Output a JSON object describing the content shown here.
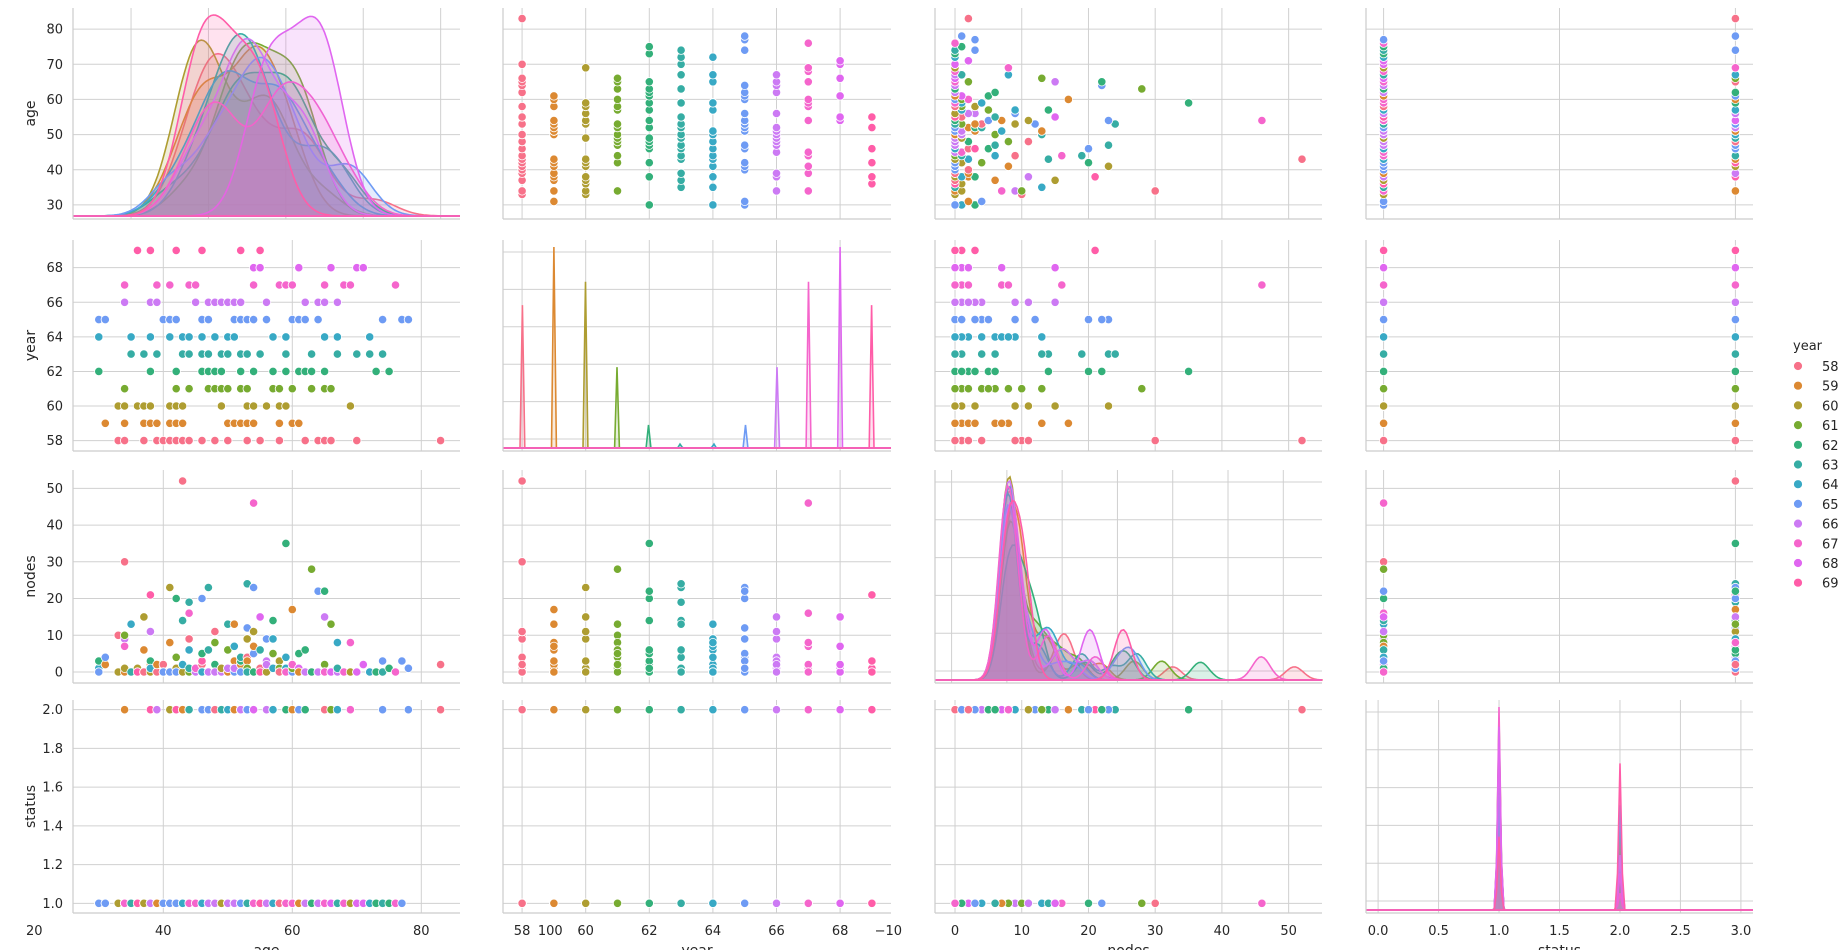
{
  "chart_data": {
    "type": "pairplot",
    "variables": [
      "age",
      "year",
      "nodes",
      "status"
    ],
    "hue": "year",
    "legend": {
      "title": "year",
      "placement": "right",
      "entries": [
        {
          "label": "58",
          "color": "#f77189"
        },
        {
          "label": "59",
          "color": "#dc8932"
        },
        {
          "label": "60",
          "color": "#ae9d31"
        },
        {
          "label": "61",
          "color": "#77ab31"
        },
        {
          "label": "62",
          "color": "#33b07a"
        },
        {
          "label": "63",
          "color": "#36ada4"
        },
        {
          "label": "64",
          "color": "#38a9c5"
        },
        {
          "label": "65",
          "color": "#6e9bf4"
        },
        {
          "label": "66",
          "color": "#cc7af4"
        },
        {
          "label": "67",
          "color": "#f565cc"
        },
        {
          "label": "68",
          "color": "#e066f0"
        },
        {
          "label": "69",
          "color": "#ff5da8"
        }
      ]
    },
    "axes": {
      "age": {
        "label": "age",
        "diag_range": [
          5,
          105
        ],
        "range": [
          26,
          86
        ],
        "ticks": [
          20,
          40,
          60,
          80,
          100
        ],
        "yticks": [
          30,
          40,
          50,
          60,
          70,
          80
        ]
      },
      "year": {
        "label": "year",
        "range": [
          57.4,
          69.6
        ],
        "ticks": [
          58,
          60,
          62,
          64,
          66,
          68
        ]
      },
      "nodes": {
        "label": "nodes",
        "diag_range": [
          -13,
          57
        ],
        "range": [
          -3,
          55
        ],
        "ticks": [
          -10,
          0,
          10,
          20,
          30,
          40,
          50
        ],
        "yticks": [
          0,
          10,
          20,
          30,
          40,
          50
        ]
      },
      "status": {
        "label": "status",
        "diag_range": [
          -0.1,
          3.1
        ],
        "range": [
          0.95,
          2.05
        ],
        "ticks": [
          0.0,
          0.5,
          1.0,
          1.5,
          2.0,
          2.5,
          3.0
        ],
        "yticks": [
          1.0,
          1.2,
          1.4,
          1.6,
          1.8,
          2.0
        ]
      }
    },
    "tick_labels": {
      "age_x": [
        "20",
        "40",
        "60",
        "80",
        "100"
      ],
      "year_x": [
        "58",
        "60",
        "62",
        "64",
        "66",
        "68"
      ],
      "nodes_x": [
        "−10",
        "0",
        "10",
        "20",
        "30",
        "40",
        "50"
      ],
      "status_x": [
        "0.0",
        "0.5",
        "1.0",
        "1.5",
        "2.0",
        "2.5",
        "3.0"
      ],
      "age_y": [
        "30",
        "40",
        "50",
        "60",
        "70",
        "80"
      ],
      "year_y": [
        "58",
        "60",
        "62",
        "64",
        "66",
        "68"
      ],
      "nodes_y": [
        "0",
        "10",
        "20",
        "30",
        "40",
        "50"
      ],
      "status_y": [
        "1.0",
        "1.2",
        "1.4",
        "1.6",
        "1.8",
        "2.0"
      ]
    },
    "grid": true,
    "records": [
      [
        30,
        64,
        1,
        1
      ],
      [
        30,
        62,
        3,
        1
      ],
      [
        30,
        65,
        0,
        1
      ],
      [
        31,
        59,
        2,
        1
      ],
      [
        31,
        65,
        4,
        1
      ],
      [
        33,
        58,
        10,
        1
      ],
      [
        33,
        60,
        0,
        1
      ],
      [
        34,
        59,
        0,
        2
      ],
      [
        34,
        66,
        9,
        1
      ],
      [
        34,
        58,
        30,
        1
      ],
      [
        34,
        60,
        1,
        1
      ],
      [
        34,
        61,
        10,
        1
      ],
      [
        34,
        67,
        7,
        1
      ],
      [
        35,
        64,
        13,
        1
      ],
      [
        35,
        63,
        0,
        1
      ],
      [
        36,
        60,
        1,
        1
      ],
      [
        36,
        69,
        0,
        1
      ],
      [
        37,
        60,
        0,
        1
      ],
      [
        37,
        63,
        0,
        1
      ],
      [
        37,
        58,
        0,
        1
      ],
      [
        37,
        59,
        6,
        1
      ],
      [
        37,
        60,
        15,
        1
      ],
      [
        38,
        69,
        21,
        2
      ],
      [
        38,
        59,
        2,
        1
      ],
      [
        38,
        60,
        0,
        1
      ],
      [
        38,
        62,
        3,
        1
      ],
      [
        38,
        64,
        1,
        1
      ],
      [
        38,
        66,
        11,
        1
      ],
      [
        39,
        66,
        0,
        2
      ],
      [
        39,
        63,
        0,
        1
      ],
      [
        39,
        67,
        0,
        1
      ],
      [
        39,
        58,
        0,
        1
      ],
      [
        39,
        59,
        2,
        1
      ],
      [
        40,
        58,
        2,
        1
      ],
      [
        40,
        58,
        0,
        1
      ],
      [
        40,
        65,
        0,
        1
      ],
      [
        41,
        60,
        23,
        2
      ],
      [
        41,
        64,
        0,
        1
      ],
      [
        41,
        67,
        0,
        1
      ],
      [
        41,
        58,
        0,
        1
      ],
      [
        41,
        59,
        8,
        1
      ],
      [
        41,
        65,
        0,
        1
      ],
      [
        42,
        69,
        1,
        2
      ],
      [
        42,
        59,
        0,
        1
      ],
      [
        42,
        58,
        0,
        1
      ],
      [
        42,
        60,
        1,
        1
      ],
      [
        42,
        61,
        4,
        1
      ],
      [
        42,
        62,
        20,
        1
      ],
      [
        42,
        65,
        0,
        1
      ],
      [
        43,
        58,
        52,
        2
      ],
      [
        43,
        59,
        2,
        2
      ],
      [
        43,
        64,
        0,
        1
      ],
      [
        43,
        60,
        0,
        1
      ],
      [
        43,
        63,
        14,
        1
      ],
      [
        43,
        64,
        2,
        1
      ],
      [
        44,
        64,
        6,
        2
      ],
      [
        44,
        58,
        9,
        2
      ],
      [
        44,
        63,
        19,
        2
      ],
      [
        44,
        61,
        0,
        1
      ],
      [
        44,
        63,
        1,
        1
      ],
      [
        44,
        67,
        16,
        1
      ],
      [
        45,
        66,
        0,
        1
      ],
      [
        45,
        67,
        1,
        1
      ],
      [
        46,
        58,
        2,
        2
      ],
      [
        46,
        69,
        3,
        2
      ],
      [
        46,
        62,
        5,
        2
      ],
      [
        46,
        65,
        20,
        2
      ],
      [
        46,
        63,
        0,
        1
      ],
      [
        46,
        64,
        0,
        1
      ],
      [
        47,
        63,
        23,
        2
      ],
      [
        47,
        62,
        0,
        2
      ],
      [
        47,
        65,
        0,
        2
      ],
      [
        47,
        61,
        0,
        1
      ],
      [
        47,
        63,
        6,
        1
      ],
      [
        47,
        66,
        0,
        1
      ],
      [
        48,
        58,
        11,
        2
      ],
      [
        48,
        58,
        11,
        2
      ],
      [
        48,
        61,
        8,
        1
      ],
      [
        48,
        62,
        2,
        1
      ],
      [
        48,
        64,
        0,
        1
      ],
      [
        48,
        66,
        0,
        1
      ],
      [
        49,
        63,
        0,
        2
      ],
      [
        49,
        61,
        1,
        1
      ],
      [
        49,
        62,
        1,
        1
      ],
      [
        49,
        66,
        0,
        1
      ],
      [
        49,
        60,
        1,
        1
      ],
      [
        50,
        63,
        13,
        2
      ],
      [
        50,
        64,
        0,
        2
      ],
      [
        50,
        59,
        0,
        1
      ],
      [
        50,
        61,
        6,
        1
      ],
      [
        50,
        63,
        1,
        1
      ],
      [
        50,
        58,
        1,
        1
      ],
      [
        50,
        66,
        1,
        1
      ],
      [
        51,
        59,
        13,
        2
      ],
      [
        51,
        59,
        3,
        2
      ],
      [
        51,
        64,
        7,
        1
      ],
      [
        51,
        59,
        1,
        1
      ],
      [
        51,
        65,
        0,
        1
      ],
      [
        51,
        66,
        1,
        1
      ],
      [
        52,
        69,
        3,
        2
      ],
      [
        52,
        59,
        2,
        2
      ],
      [
        52,
        62,
        3,
        2
      ],
      [
        52,
        66,
        4,
        2
      ],
      [
        52,
        61,
        0,
        1
      ],
      [
        52,
        63,
        4,
        1
      ],
      [
        52,
        65,
        0,
        1
      ],
      [
        53,
        58,
        4,
        1
      ],
      [
        53,
        65,
        1,
        2
      ],
      [
        53,
        59,
        3,
        2
      ],
      [
        53,
        60,
        9,
        2
      ],
      [
        53,
        63,
        24,
        2
      ],
      [
        53,
        65,
        12,
        2
      ],
      [
        53,
        61,
        1,
        1
      ],
      [
        53,
        63,
        0,
        1
      ],
      [
        54,
        60,
        11,
        2
      ],
      [
        54,
        65,
        23,
        2
      ],
      [
        54,
        65,
        5,
        2
      ],
      [
        54,
        68,
        7,
        2
      ],
      [
        54,
        59,
        7,
        1
      ],
      [
        54,
        62,
        0,
        1
      ],
      [
        54,
        67,
        46,
        1
      ],
      [
        55,
        63,
        6,
        1
      ],
      [
        55,
        68,
        15,
        1
      ],
      [
        55,
        58,
        1,
        1
      ],
      [
        55,
        69,
        0,
        1
      ],
      [
        56,
        65,
        9,
        2
      ],
      [
        56,
        66,
        3,
        2
      ],
      [
        56,
        60,
        0,
        1
      ],
      [
        56,
        66,
        2,
        1
      ],
      [
        57,
        61,
        5,
        2
      ],
      [
        57,
        62,
        14,
        2
      ],
      [
        57,
        64,
        9,
        2
      ],
      [
        57,
        64,
        1,
        1
      ],
      [
        58,
        59,
        0,
        1
      ],
      [
        58,
        60,
        3,
        1
      ],
      [
        58,
        61,
        1,
        1
      ],
      [
        58,
        67,
        0,
        1
      ],
      [
        58,
        58,
        0,
        1
      ],
      [
        59,
        62,
        35,
        2
      ],
      [
        59,
        60,
        0,
        1
      ],
      [
        59,
        63,
        0,
        1
      ],
      [
        59,
        64,
        1,
        1
      ],
      [
        59,
        64,
        4,
        1
      ],
      [
        59,
        64,
        0,
        1
      ],
      [
        59,
        67,
        0,
        1
      ],
      [
        60,
        59,
        17,
        2
      ],
      [
        60,
        65,
        0,
        1
      ],
      [
        60,
        61,
        1,
        1
      ],
      [
        60,
        67,
        2,
        1
      ],
      [
        61,
        59,
        0,
        1
      ],
      [
        61,
        62,
        5,
        2
      ],
      [
        61,
        65,
        0,
        2
      ],
      [
        61,
        68,
        1,
        1
      ],
      [
        61,
        59,
        0,
        1
      ],
      [
        62,
        62,
        6,
        2
      ],
      [
        62,
        58,
        0,
        1
      ],
      [
        62,
        65,
        0,
        1
      ],
      [
        62,
        66,
        0,
        1
      ],
      [
        63,
        61,
        0,
        1
      ],
      [
        63,
        63,
        0,
        1
      ],
      [
        63,
        61,
        28,
        1
      ],
      [
        63,
        62,
        0,
        1
      ],
      [
        64,
        65,
        22,
        1
      ],
      [
        64,
        58,
        0,
        1
      ],
      [
        64,
        66,
        0,
        1
      ],
      [
        65,
        61,
        2,
        1
      ],
      [
        65,
        62,
        22,
        2
      ],
      [
        65,
        66,
        15,
        2
      ],
      [
        65,
        58,
        0,
        2
      ],
      [
        65,
        64,
        0,
        1
      ],
      [
        65,
        67,
        0,
        1
      ],
      [
        66,
        58,
        0,
        1
      ],
      [
        66,
        61,
        13,
        2
      ],
      [
        66,
        68,
        0,
        1
      ],
      [
        67,
        66,
        0,
        1
      ],
      [
        67,
        64,
        8,
        2
      ],
      [
        67,
        63,
        1,
        1
      ],
      [
        68,
        67,
        0,
        1
      ],
      [
        69,
        67,
        8,
        2
      ],
      [
        69,
        60,
        0,
        1
      ],
      [
        70,
        58,
        0,
        1
      ],
      [
        70,
        63,
        0,
        1
      ],
      [
        70,
        68,
        0,
        1
      ],
      [
        71,
        68,
        2,
        1
      ],
      [
        72,
        63,
        0,
        1
      ],
      [
        72,
        64,
        0,
        1
      ],
      [
        73,
        62,
        0,
        1
      ],
      [
        74,
        63,
        0,
        1
      ],
      [
        74,
        65,
        3,
        2
      ],
      [
        75,
        62,
        1,
        1
      ],
      [
        76,
        67,
        0,
        1
      ],
      [
        77,
        65,
        3,
        1
      ],
      [
        78,
        65,
        1,
        2
      ],
      [
        83,
        58,
        2,
        2
      ]
    ]
  }
}
